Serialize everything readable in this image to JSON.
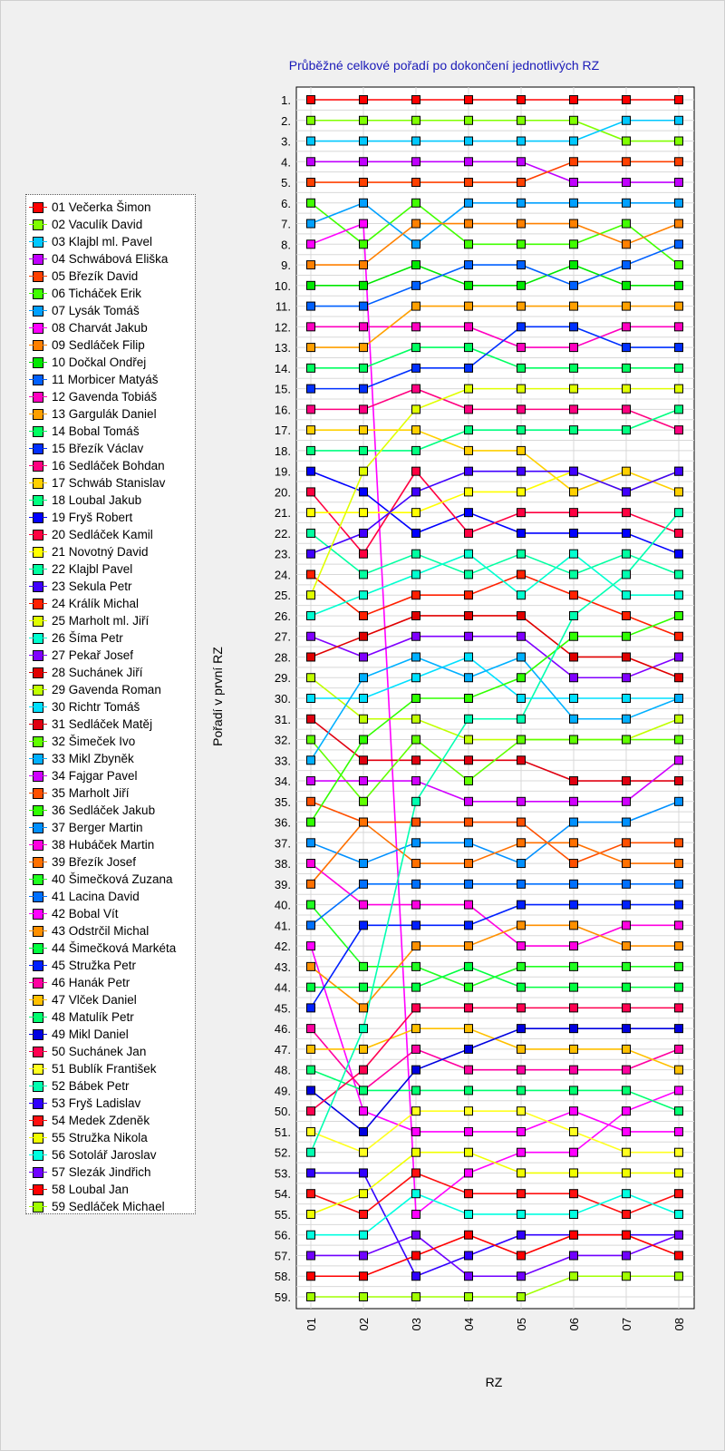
{
  "chart_data": {
    "type": "line",
    "title": "Průběžné celkové pořadí po dokončení jednotlivých RZ",
    "xlabel": "RZ",
    "ylabel": "Pořadí v první RZ",
    "x": [
      "01",
      "02",
      "03",
      "04",
      "05",
      "06",
      "07",
      "08"
    ],
    "y_ticks": [
      "1.",
      "2.",
      "3.",
      "4.",
      "5.",
      "6.",
      "7.",
      "8.",
      "9.",
      "10.",
      "11.",
      "12.",
      "13.",
      "14.",
      "15.",
      "16.",
      "17.",
      "18.",
      "19.",
      "20.",
      "21.",
      "22.",
      "23.",
      "24.",
      "25.",
      "26.",
      "27.",
      "28.",
      "29.",
      "30.",
      "31.",
      "32.",
      "33.",
      "34.",
      "35.",
      "36.",
      "37.",
      "38.",
      "39.",
      "40.",
      "41.",
      "42.",
      "43.",
      "44.",
      "45.",
      "46.",
      "47.",
      "48.",
      "49.",
      "50.",
      "51.",
      "52.",
      "53.",
      "54.",
      "55.",
      "56.",
      "57.",
      "58.",
      "59."
    ],
    "ylim": [
      1,
      59
    ],
    "y_inverted": true,
    "grid": true,
    "legend_position": "left",
    "series": [
      {
        "name": "01 Večerka Šimon",
        "color": "#ff0000",
        "values": [
          1,
          1,
          1,
          1,
          1,
          1,
          1,
          1
        ]
      },
      {
        "name": "02 Vaculík David",
        "color": "#80ff00",
        "values": [
          2,
          2,
          2,
          2,
          2,
          2,
          3,
          3
        ]
      },
      {
        "name": "03 Klajbl ml. Pavel",
        "color": "#00c8ff",
        "values": [
          3,
          3,
          3,
          3,
          3,
          3,
          2,
          2
        ]
      },
      {
        "name": "04 Schwábová Eliška",
        "color": "#c000ff",
        "values": [
          4,
          4,
          4,
          4,
          4,
          5,
          5,
          5
        ]
      },
      {
        "name": "05 Březík David",
        "color": "#ff4000",
        "values": [
          5,
          5,
          5,
          5,
          5,
          4,
          4,
          4
        ]
      },
      {
        "name": "06 Ticháček Erik",
        "color": "#40ff00",
        "values": [
          6,
          8,
          6,
          8,
          8,
          8,
          7,
          9
        ]
      },
      {
        "name": "07 Lysák Tomáš",
        "color": "#00a0ff",
        "values": [
          7,
          6,
          8,
          6,
          6,
          6,
          6,
          6
        ]
      },
      {
        "name": "08 Charvát Jakub",
        "color": "#ff00ff",
        "values": [
          8,
          7,
          55,
          53,
          52,
          52,
          50,
          49
        ]
      },
      {
        "name": "09 Sedláček Filip",
        "color": "#ff8000",
        "values": [
          9,
          9,
          7,
          7,
          7,
          7,
          8,
          7
        ]
      },
      {
        "name": "10 Dočkal Ondřej",
        "color": "#00e800",
        "values": [
          10,
          10,
          9,
          10,
          10,
          9,
          10,
          10
        ]
      },
      {
        "name": "11 Morbicer Matyáš",
        "color": "#0060ff",
        "values": [
          11,
          11,
          10,
          9,
          9,
          10,
          9,
          8
        ]
      },
      {
        "name": "12 Gavenda Tobiáš",
        "color": "#ff00c0",
        "values": [
          12,
          12,
          12,
          12,
          13,
          13,
          12,
          12
        ]
      },
      {
        "name": "13 Gargulák Daniel",
        "color": "#ffa000",
        "values": [
          13,
          13,
          11,
          11,
          11,
          11,
          11,
          11
        ]
      },
      {
        "name": "14 Bobal Tomáš",
        "color": "#00ff60",
        "values": [
          14,
          14,
          13,
          13,
          14,
          14,
          14,
          14
        ]
      },
      {
        "name": "15 Březík Václav",
        "color": "#0030ff",
        "values": [
          15,
          15,
          14,
          14,
          12,
          12,
          13,
          13
        ]
      },
      {
        "name": "16 Sedláček Bohdan",
        "color": "#ff0080",
        "values": [
          16,
          16,
          15,
          16,
          16,
          16,
          16,
          17
        ]
      },
      {
        "name": "17 Schwáb Stanislav",
        "color": "#ffd000",
        "values": [
          17,
          17,
          17,
          18,
          18,
          20,
          19,
          20
        ]
      },
      {
        "name": "18 Loubal Jakub",
        "color": "#00ff80",
        "values": [
          18,
          18,
          18,
          17,
          17,
          17,
          17,
          16
        ]
      },
      {
        "name": "19 Fryš Robert",
        "color": "#0000ff",
        "values": [
          19,
          20,
          22,
          21,
          22,
          22,
          22,
          23
        ]
      },
      {
        "name": "20 Sedláček Kamil",
        "color": "#ff0040",
        "values": [
          20,
          23,
          19,
          22,
          21,
          21,
          21,
          22
        ]
      },
      {
        "name": "21 Novotný David",
        "color": "#ffff00",
        "values": [
          21,
          21,
          21,
          20,
          20,
          19,
          20,
          19
        ]
      },
      {
        "name": "22 Klajbl Pavel",
        "color": "#00ffa0",
        "values": [
          22,
          24,
          23,
          24,
          23,
          24,
          23,
          24
        ]
      },
      {
        "name": "23 Sekula Petr",
        "color": "#4000ff",
        "values": [
          23,
          22,
          20,
          19,
          19,
          19,
          20,
          19
        ]
      },
      {
        "name": "24 Králík Michal",
        "color": "#ff2000",
        "values": [
          24,
          26,
          25,
          25,
          24,
          25,
          26,
          27
        ]
      },
      {
        "name": "25 Marholt ml. Jiří",
        "color": "#e0ff00",
        "values": [
          25,
          19,
          16,
          15,
          15,
          15,
          15,
          15
        ]
      },
      {
        "name": "26 Šíma Petr",
        "color": "#00ffd0",
        "values": [
          26,
          25,
          24,
          23,
          25,
          23,
          25,
          25
        ]
      },
      {
        "name": "27 Pekař Josef",
        "color": "#8000ff",
        "values": [
          27,
          28,
          27,
          27,
          27,
          29,
          29,
          28
        ]
      },
      {
        "name": "28 Suchánek Jiří",
        "color": "#e00000",
        "values": [
          28,
          27,
          26,
          26,
          26,
          28,
          28,
          29
        ]
      },
      {
        "name": "29 Gavenda Roman",
        "color": "#c0ff00",
        "values": [
          29,
          31,
          31,
          32,
          32,
          32,
          32,
          31
        ]
      },
      {
        "name": "30 Richtr Tomáš",
        "color": "#00e0ff",
        "values": [
          30,
          30,
          29,
          28,
          30,
          30,
          30,
          30
        ]
      },
      {
        "name": "31 Sedláček Matěj",
        "color": "#e00010",
        "values": [
          31,
          33,
          33,
          33,
          33,
          34,
          34,
          34
        ]
      },
      {
        "name": "32 Šimeček Ivo",
        "color": "#60ff00",
        "values": [
          32,
          35,
          32,
          34,
          32,
          32,
          32,
          32
        ]
      },
      {
        "name": "33 Mikl Zbyněk",
        "color": "#00b0ff",
        "values": [
          33,
          29,
          28,
          29,
          28,
          31,
          31,
          30
        ]
      },
      {
        "name": "34 Fajgar Pavel",
        "color": "#d000ff",
        "values": [
          34,
          34,
          34,
          35,
          35,
          35,
          35,
          33
        ]
      },
      {
        "name": "35 Marholt Jiří",
        "color": "#ff5000",
        "values": [
          35,
          36,
          36,
          36,
          36,
          38,
          37,
          37
        ]
      },
      {
        "name": "36 Sedláček Jakub",
        "color": "#30ff00",
        "values": [
          36,
          32,
          30,
          30,
          29,
          27,
          27,
          26
        ]
      },
      {
        "name": "37 Berger Martin",
        "color": "#0090ff",
        "values": [
          37,
          38,
          37,
          37,
          38,
          36,
          36,
          35
        ]
      },
      {
        "name": "38 Hubáček Martin",
        "color": "#ff00e0",
        "values": [
          38,
          40,
          40,
          40,
          42,
          42,
          41,
          41
        ]
      },
      {
        "name": "39 Březík Josef",
        "color": "#ff7000",
        "values": [
          39,
          36,
          38,
          38,
          37,
          37,
          38,
          38
        ]
      },
      {
        "name": "40 Šimečková Zuzana",
        "color": "#20ff20",
        "values": [
          40,
          43,
          43,
          44,
          43,
          43,
          43,
          43
        ]
      },
      {
        "name": "41 Lacina David",
        "color": "#0070ff",
        "values": [
          41,
          39,
          39,
          39,
          39,
          39,
          39,
          39
        ]
      },
      {
        "name": "42 Bobal Vít",
        "color": "#ff00ff",
        "values": [
          42,
          50,
          51,
          51,
          51,
          50,
          51,
          51
        ]
      },
      {
        "name": "43 Odstrčil Michal",
        "color": "#ff9000",
        "values": [
          43,
          45,
          42,
          42,
          41,
          41,
          42,
          42
        ]
      },
      {
        "name": "44 Šimečková Markéta",
        "color": "#00ff40",
        "values": [
          44,
          44,
          44,
          43,
          44,
          44,
          44,
          44
        ]
      },
      {
        "name": "45 Stružka Petr",
        "color": "#0020ff",
        "values": [
          45,
          41,
          41,
          41,
          40,
          40,
          40,
          40
        ]
      },
      {
        "name": "46 Hanák Petr",
        "color": "#ff00a0",
        "values": [
          46,
          49,
          47,
          48,
          48,
          48,
          48,
          47
        ]
      },
      {
        "name": "47 Vlček Daniel",
        "color": "#ffc000",
        "values": [
          47,
          47,
          46,
          46,
          47,
          47,
          47,
          48
        ]
      },
      {
        "name": "48 Matulík Petr",
        "color": "#00ff70",
        "values": [
          48,
          49,
          49,
          49,
          49,
          49,
          49,
          50
        ]
      },
      {
        "name": "49 Mikl Daniel",
        "color": "#0000e0",
        "values": [
          49,
          51,
          48,
          47,
          46,
          46,
          46,
          46
        ]
      },
      {
        "name": "50 Suchánek Jan",
        "color": "#ff0050",
        "values": [
          50,
          48,
          45,
          45,
          45,
          45,
          45,
          45
        ]
      },
      {
        "name": "51 Bublík František",
        "color": "#ffff20",
        "values": [
          51,
          52,
          50,
          50,
          50,
          51,
          52,
          52
        ]
      },
      {
        "name": "52 Bábek Petr",
        "color": "#00ffb0",
        "values": [
          52,
          46,
          35,
          31,
          31,
          26,
          24,
          21
        ]
      },
      {
        "name": "53 Fryš Ladislav",
        "color": "#3000ff",
        "values": [
          53,
          53,
          58,
          57,
          56,
          56,
          56,
          56
        ]
      },
      {
        "name": "54 Medek Zdeněk",
        "color": "#ff1010",
        "values": [
          54,
          55,
          53,
          54,
          54,
          54,
          55,
          54
        ]
      },
      {
        "name": "55 Stružka Nikola",
        "color": "#f0ff00",
        "values": [
          55,
          54,
          52,
          52,
          53,
          53,
          53,
          53
        ]
      },
      {
        "name": "56 Sotolář Jaroslav",
        "color": "#00ffe0",
        "values": [
          56,
          56,
          54,
          55,
          55,
          55,
          54,
          55
        ]
      },
      {
        "name": "57 Slezák Jindřich",
        "color": "#7000ff",
        "values": [
          57,
          57,
          56,
          58,
          58,
          57,
          57,
          56
        ]
      },
      {
        "name": "58 Loubal Jan",
        "color": "#ff0000",
        "values": [
          58,
          58,
          57,
          56,
          57,
          56,
          56,
          57
        ]
      },
      {
        "name": "59 Sedláček Michael",
        "color": "#a0ff00",
        "values": [
          59,
          59,
          59,
          59,
          59,
          58,
          58,
          58
        ]
      }
    ]
  }
}
